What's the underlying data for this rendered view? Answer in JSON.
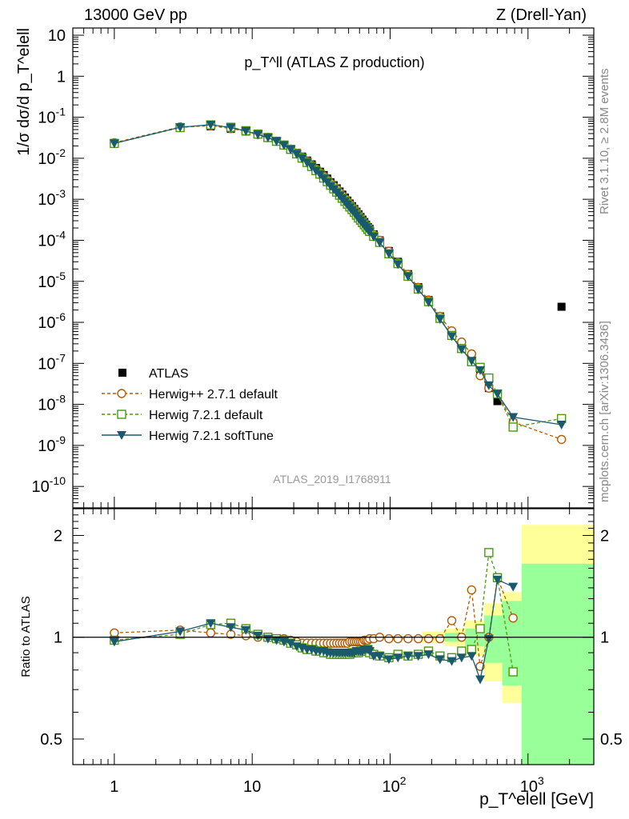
{
  "header": {
    "left": "13000 GeV pp",
    "right": "Z (Drell-Yan)"
  },
  "side_labels": {
    "rivet": "Rivet 3.1.10, ≥ 2.8M events",
    "mcplots": "mcplots.cern.ch [arXiv:1306.3436]"
  },
  "colors": {
    "data": "#000000",
    "herwigpp": "#b35900",
    "herwig721": "#4a9a0c",
    "softtune": "#1a5a6e",
    "band_yellow": "#ffff99",
    "band_green": "#99ff99"
  },
  "chart_data": [
    {
      "type": "scatter",
      "title": "p_T^ll (ATLAS Z production)",
      "analysis": "ATLAS_2019_I1768911",
      "ylabel": "1/σ dσ/d p_T^elell",
      "xlog": true,
      "ylog": true,
      "xlim": [
        0.5,
        3000
      ],
      "ylim": [
        3e-11,
        15
      ],
      "x_tick_labels": [
        "1",
        "10",
        "10^2",
        "10^3"
      ],
      "y_tick_labels": [
        "10^-10",
        "10^-9",
        "10^-8",
        "10^-7",
        "10^-6",
        "10^-5",
        "10^-4",
        "10^-3",
        "10^-2",
        "10^-1",
        "1",
        "10"
      ],
      "legend_position": "bottom-left",
      "x": [
        1,
        3,
        5,
        7,
        9,
        11,
        13,
        15,
        17,
        19,
        21,
        23,
        25,
        27,
        29,
        31,
        33,
        35,
        37,
        39,
        41,
        43,
        45,
        47,
        49,
        51,
        53,
        55,
        57,
        59,
        61,
        63,
        65,
        67,
        69,
        71,
        76,
        84,
        98,
        114,
        135,
        160,
        190,
        230,
        280,
        330,
        390,
        450,
        520,
        600,
        780,
        1750
      ],
      "series": [
        {
          "name": "ATLAS",
          "style": "data",
          "values": [
            0.0235,
            0.055,
            0.06,
            0.052,
            0.045,
            0.038,
            0.032,
            0.026,
            0.021,
            0.017,
            0.0135,
            0.011,
            0.0088,
            0.0071,
            0.0058,
            0.0047,
            0.0039,
            0.0032,
            0.0026,
            0.0022,
            0.00185,
            0.00155,
            0.0013,
            0.0011,
            0.00093,
            0.00079,
            0.00068,
            0.00058,
            0.0005,
            0.00043,
            0.00037,
            0.00032,
            0.00028,
            0.00024,
            0.00021,
            0.00019,
            0.00014,
            0.0001,
            5.5e-05,
            3e-05,
            1.5e-05,
            7.2e-06,
            3.5e-06,
            1.4e-06,
            5.5e-07,
            2.5e-07,
            1.2e-07,
            6e-08,
            2.5e-08,
            1.2e-08,
            3.5e-09,
            2.4e-06
          ]
        },
        {
          "name": "Herwig++ 2.7.1 default",
          "style": "hpp",
          "values": [
            0.024,
            0.058,
            0.062,
            0.053,
            0.046,
            0.038,
            0.032,
            0.026,
            0.021,
            0.0168,
            0.0133,
            0.0107,
            0.0085,
            0.0068,
            0.0055,
            0.0045,
            0.0037,
            0.003,
            0.0025,
            0.0021,
            0.00178,
            0.00148,
            0.00124,
            0.00105,
            0.0009,
            0.00077,
            0.00066,
            0.00057,
            0.00049,
            0.00042,
            0.00036,
            0.00031,
            0.00027,
            0.00024,
            0.00021,
            0.00019,
            0.000138,
            0.0001,
            5.4e-05,
            2.9e-05,
            1.48e-05,
            7.1e-06,
            3.5e-06,
            1.4e-06,
            6.2e-07,
            3.3e-07,
            1.7e-07,
            5e-08,
            2.5e-08,
            1.8e-08,
            3.7e-09,
            1.4e-09
          ]
        },
        {
          "name": "Herwig 7.2.1 default",
          "style": "h721",
          "values": [
            0.023,
            0.056,
            0.065,
            0.057,
            0.047,
            0.039,
            0.032,
            0.026,
            0.021,
            0.0165,
            0.0128,
            0.0101,
            0.0079,
            0.0063,
            0.005,
            0.0041,
            0.0033,
            0.0027,
            0.0022,
            0.0018,
            0.0015,
            0.00126,
            0.00106,
            0.00089,
            0.00076,
            0.00065,
            0.00056,
            0.00048,
            0.00041,
            0.00035,
            0.00031,
            0.00027,
            0.00024,
            0.00021,
            0.000185,
            0.000165,
            0.000125,
            8.9e-05,
            4.7e-05,
            2.7e-05,
            1.33e-05,
            6.5e-06,
            3.2e-06,
            1.25e-06,
            4.8e-07,
            2.3e-07,
            1.1e-07,
            8e-08,
            4.4e-08,
            1.8e-08,
            2.8e-09,
            4.5e-09
          ]
        },
        {
          "name": "Herwig 7.2.1 softTune",
          "style": "soft",
          "values": [
            0.023,
            0.057,
            0.066,
            0.056,
            0.046,
            0.038,
            0.032,
            0.026,
            0.0208,
            0.0163,
            0.0126,
            0.0099,
            0.0078,
            0.0062,
            0.0049,
            0.004,
            0.0032,
            0.0026,
            0.0021,
            0.00175,
            0.00146,
            0.00123,
            0.00103,
            0.00087,
            0.00074,
            0.00063,
            0.00054,
            0.00047,
            0.0004,
            0.00034,
            0.0003,
            0.00026,
            0.00023,
            0.000205,
            0.00018,
            0.00016,
            0.000122,
            8.8e-05,
            4.7e-05,
            2.6e-05,
            1.32e-05,
            6.3e-06,
            3.1e-06,
            1.2e-06,
            4.6e-07,
            2.2e-07,
            1.15e-07,
            6.8e-08,
            2.9e-08,
            1.8e-08,
            4.9e-09,
            3.2e-09
          ]
        }
      ]
    },
    {
      "type": "scatter",
      "ylabel": "Ratio to ATLAS",
      "xlabel": "p_T^elell [GeV]",
      "xlog": true,
      "ylog": true,
      "xlim": [
        0.5,
        3000
      ],
      "ylim": [
        0.42,
        2.4
      ],
      "reference_line": 1,
      "y_tick_labels": [
        "0.5",
        "1",
        "2"
      ],
      "x": [
        1,
        3,
        5,
        7,
        9,
        11,
        13,
        15,
        17,
        19,
        21,
        23,
        25,
        27,
        29,
        31,
        33,
        35,
        37,
        39,
        41,
        43,
        45,
        47,
        49,
        51,
        53,
        55,
        57,
        59,
        61,
        63,
        65,
        67,
        69,
        71,
        76,
        84,
        98,
        114,
        135,
        160,
        190,
        230,
        280,
        330,
        390,
        450,
        520,
        600,
        780
      ],
      "bands": [
        {
          "x1": 170,
          "x2": 250,
          "yellow": [
            0.96,
            1.04
          ]
        },
        {
          "x1": 250,
          "x2": 350,
          "yellow": [
            0.94,
            1.06
          ],
          "green": [
            0.97,
            1.03
          ]
        },
        {
          "x1": 350,
          "x2": 480,
          "yellow": [
            0.88,
            1.12
          ],
          "green": [
            0.94,
            1.06
          ]
        },
        {
          "x1": 480,
          "x2": 650,
          "yellow": [
            0.74,
            1.26
          ],
          "green": [
            0.84,
            1.16
          ]
        },
        {
          "x1": 650,
          "x2": 900,
          "yellow": [
            0.64,
            1.36
          ],
          "green": [
            0.72,
            1.28
          ]
        },
        {
          "x1": 900,
          "x2": 3000,
          "yellow": [
            0.4,
            2.15
          ],
          "green": [
            0.4,
            1.65
          ]
        }
      ],
      "series": [
        {
          "name": "Herwig++ 2.7.1 default",
          "style": "hpp",
          "values": [
            1.03,
            1.05,
            1.03,
            1.02,
            1.01,
            1.0,
            1.0,
            0.99,
            0.99,
            0.98,
            0.97,
            0.96,
            0.96,
            0.96,
            0.96,
            0.96,
            0.96,
            0.96,
            0.96,
            0.96,
            0.96,
            0.96,
            0.96,
            0.96,
            0.96,
            0.97,
            0.97,
            0.97,
            0.97,
            0.97,
            0.97,
            0.97,
            0.98,
            0.98,
            0.98,
            0.99,
            0.99,
            1.0,
            0.99,
            0.99,
            0.99,
            0.99,
            0.99,
            0.99,
            1.12,
            1.0,
            1.38,
            0.82,
            1.0,
            1.5,
            1.14
          ]
        },
        {
          "name": "Herwig 7.2.1 default",
          "style": "h721",
          "values": [
            0.98,
            1.02,
            1.09,
            1.1,
            1.06,
            1.02,
            1.0,
            0.99,
            0.98,
            0.96,
            0.95,
            0.93,
            0.92,
            0.92,
            0.91,
            0.91,
            0.9,
            0.9,
            0.89,
            0.89,
            0.89,
            0.89,
            0.89,
            0.89,
            0.89,
            0.89,
            0.9,
            0.9,
            0.9,
            0.9,
            0.91,
            0.91,
            0.91,
            0.91,
            0.92,
            0.9,
            0.89,
            0.88,
            0.87,
            0.89,
            0.88,
            0.89,
            0.91,
            0.88,
            0.87,
            0.91,
            0.92,
            1.06,
            1.78,
            1.5,
            0.79
          ]
        },
        {
          "name": "Herwig 7.2.1 softTune",
          "style": "soft",
          "values": [
            0.97,
            1.04,
            1.1,
            1.07,
            1.05,
            1.01,
            0.99,
            0.98,
            0.97,
            0.96,
            0.94,
            0.93,
            0.92,
            0.92,
            0.91,
            0.91,
            0.91,
            0.9,
            0.9,
            0.9,
            0.9,
            0.9,
            0.9,
            0.9,
            0.9,
            0.9,
            0.9,
            0.9,
            0.91,
            0.91,
            0.91,
            0.91,
            0.92,
            0.92,
            0.92,
            0.91,
            0.88,
            0.88,
            0.86,
            0.87,
            0.88,
            0.88,
            0.89,
            0.86,
            0.85,
            0.87,
            0.88,
            0.75,
            0.99,
            1.48,
            1.41
          ]
        }
      ]
    }
  ]
}
